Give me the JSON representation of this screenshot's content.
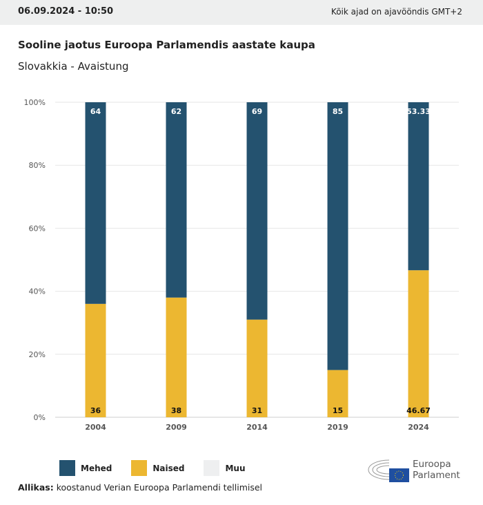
{
  "header": {
    "date": "06.09.2024 - 10:50",
    "timezone": "Kõik ajad on ajavööndis GMT+2"
  },
  "title": "Sooline jaotus Euroopa Parlamendis aastate kaupa",
  "subtitle": "Slovakkia - Avaistung",
  "legend": [
    {
      "label": "Mehed",
      "color": "#24526f"
    },
    {
      "label": "Naised",
      "color": "#ecb731"
    },
    {
      "label": "Muu",
      "color": "#eeeff0"
    }
  ],
  "source": {
    "label": "Allikas:",
    "text": "koostanud Verian Euroopa Parlamendi tellimisel"
  },
  "logo": {
    "line1": "Euroopa",
    "line2": "Parlament"
  },
  "chart_data": {
    "type": "bar",
    "stacked": true,
    "categories": [
      "2004",
      "2009",
      "2014",
      "2019",
      "2024"
    ],
    "series": [
      {
        "name": "Naised",
        "color": "#ecb731",
        "values": [
          36,
          38,
          31,
          15,
          46.67
        ]
      },
      {
        "name": "Mehed",
        "color": "#24526f",
        "values": [
          64,
          62,
          69,
          85,
          53.33
        ]
      }
    ],
    "yticks": [
      "0%",
      "20%",
      "40%",
      "60%",
      "80%",
      "100%"
    ],
    "ylim": [
      0,
      100
    ],
    "grid": true,
    "legend_position": "bottom-left"
  }
}
